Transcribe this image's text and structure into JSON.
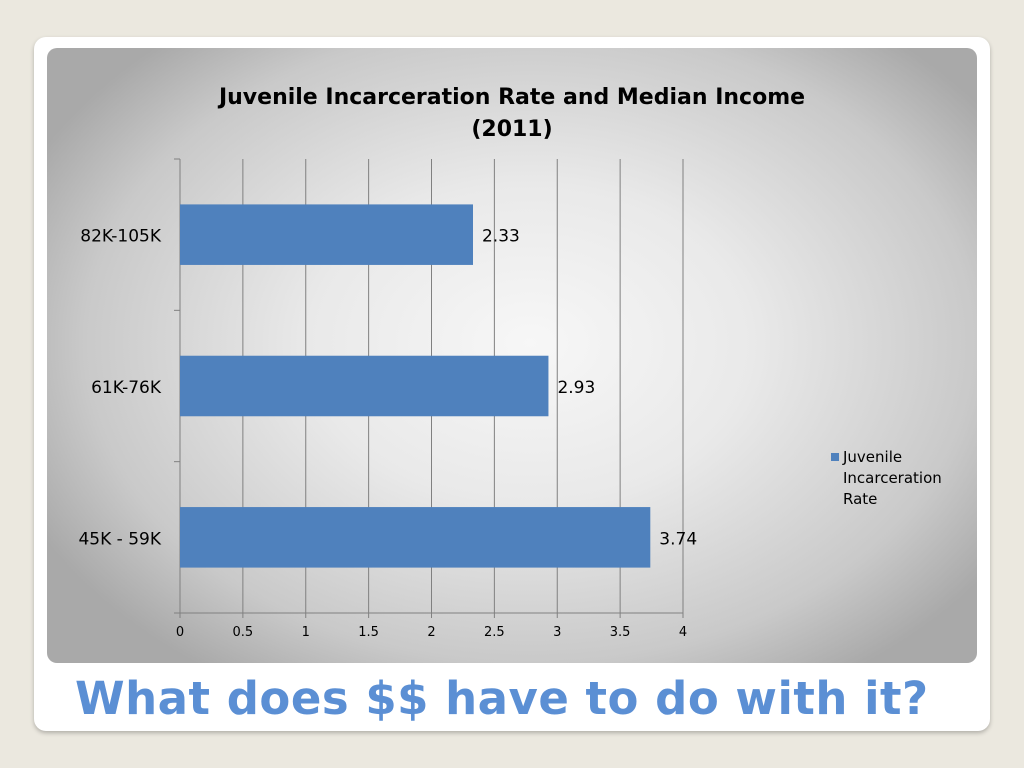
{
  "slide": {
    "heading": "What does $$ have to do with it?"
  },
  "chart_data": {
    "type": "bar",
    "orientation": "horizontal",
    "title": "Juvenile Incarceration Rate and Median Income (2011)",
    "title_lines": [
      "Juvenile Incarceration Rate and Median Income",
      "(2011)"
    ],
    "categories": [
      "82K-105K",
      "61K-76K",
      "45K - 59K"
    ],
    "series": [
      {
        "name": "Juvenile Incarceration Rate",
        "legend_lines": [
          "Juvenile",
          "Incarceration",
          "Rate"
        ],
        "values": [
          2.33,
          2.93,
          3.74
        ],
        "labels": [
          "2.33",
          "2.93",
          "3.74"
        ],
        "color": "#4f81bd"
      }
    ],
    "xlim": [
      0,
      4
    ],
    "x_ticks": [
      0,
      0.5,
      1,
      1.5,
      2,
      2.5,
      3,
      3.5,
      4
    ],
    "x_tick_labels": [
      "0",
      "0.5",
      "1",
      "1.5",
      "2",
      "2.5",
      "3",
      "3.5",
      "4"
    ],
    "grid": true,
    "legend": "right",
    "colors": {
      "gridline": "#808080",
      "text": "#000000"
    }
  }
}
